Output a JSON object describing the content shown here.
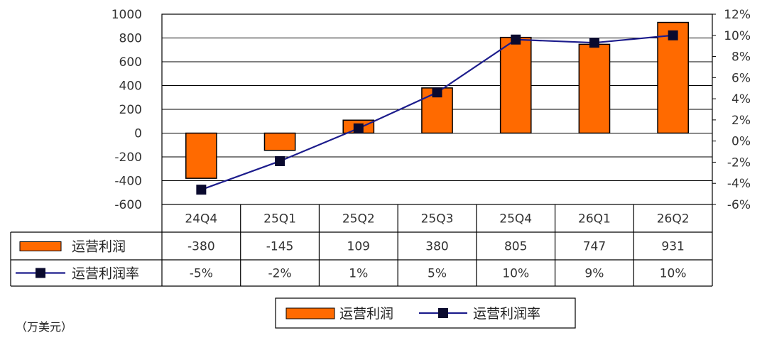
{
  "chart_data": {
    "type": "bar",
    "categories": [
      "24Q4",
      "25Q1",
      "25Q2",
      "25Q3",
      "25Q4",
      "26Q1",
      "26Q2"
    ],
    "series": [
      {
        "name": "运营利润",
        "type": "bar",
        "axis": "left",
        "values": [
          -380,
          -145,
          109,
          380,
          805,
          747,
          931
        ]
      },
      {
        "name": "运营利润率",
        "type": "line",
        "axis": "right",
        "values": [
          -4.6,
          -1.9,
          1.2,
          4.6,
          9.6,
          9.3,
          10.0
        ]
      }
    ],
    "table": {
      "rows": [
        {
          "label": "运营利润",
          "cells": [
            "-380",
            "-145",
            "109",
            "380",
            "805",
            "747",
            "931"
          ]
        },
        {
          "label": "运营利润率",
          "cells": [
            "-5%",
            "-2%",
            "1%",
            "5%",
            "10%",
            "9%",
            "10%"
          ]
        }
      ]
    },
    "y_left": {
      "ylim": [
        -600,
        1000
      ],
      "ticks": [
        "1000",
        "800",
        "600",
        "400",
        "200",
        "0",
        "-200",
        "-400",
        "-600"
      ]
    },
    "y_right": {
      "ylim": [
        -6,
        12
      ],
      "ticks": [
        "12%",
        "10%",
        "8%",
        "6%",
        "4%",
        "2%",
        "0%",
        "-2%",
        "-4%",
        "-6%"
      ]
    },
    "grid": true,
    "legend": {
      "position": "bottom",
      "items": [
        "运营利润",
        "运营利润率"
      ]
    },
    "unit_label": "（万美元）",
    "colors": {
      "bar": "#FF6A00",
      "bar_edge": "#000000",
      "line": "#1C1C8C",
      "marker": "#0A0A2E"
    }
  }
}
